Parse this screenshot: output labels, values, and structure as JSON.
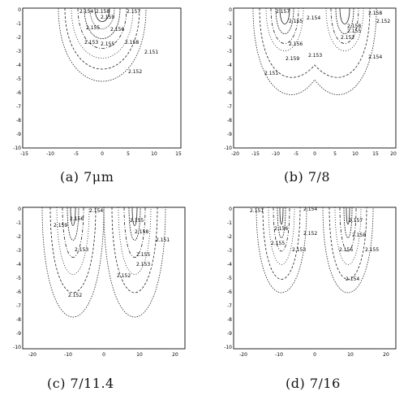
{
  "panels": [
    {
      "caption": "(a) 7μm",
      "xticks": [
        "-15",
        "-10",
        "-5",
        "0",
        "5",
        "10",
        "15"
      ],
      "yticks": [
        "0",
        "-1",
        "-2",
        "-3",
        "-4",
        "-5",
        "-6",
        "-7",
        "-8",
        "-9",
        "-10"
      ],
      "labels": [
        "2.154",
        "2.158",
        "2.157",
        "2.159",
        "2.155",
        "2.156",
        "2.153",
        "2.155",
        "2.158",
        "2.151",
        "2.152"
      ]
    },
    {
      "caption": "(b) 7/8",
      "xticks": [
        "-20",
        "-15",
        "-10",
        "-5",
        "0",
        "5",
        "10",
        "15",
        "20"
      ],
      "yticks": [
        "0",
        "-1",
        "-2",
        "-3",
        "-4",
        "-5",
        "-6",
        "-7",
        "-8",
        "-9",
        "-10"
      ],
      "labels": [
        "2.157",
        "2.154",
        "2.155",
        "2.152",
        "2.158",
        "2.155",
        "2.156",
        "2.153",
        "2.159",
        "2.154",
        "2.151",
        "2.158",
        "2.152"
      ]
    },
    {
      "caption": "(c) 7/11.4",
      "xticks": [
        "-20",
        "-10",
        "0",
        "10",
        "20"
      ],
      "yticks": [
        "0",
        "-1",
        "-2",
        "-3",
        "-4",
        "-5",
        "-6",
        "-7",
        "-8",
        "-9",
        "-10"
      ],
      "labels": [
        "2.154",
        "2.156",
        "2.155",
        "2.159",
        "2.158",
        "2.151",
        "2.153",
        "2.155",
        "2.153",
        "2.152",
        "2.152"
      ]
    },
    {
      "caption": "(d) 7/16",
      "xticks": [
        "-20",
        "-10",
        "0",
        "10",
        "20"
      ],
      "yticks": [
        "0",
        "-1",
        "-2",
        "-3",
        "-4",
        "-5",
        "-6",
        "-7",
        "-8",
        "-9",
        "-10"
      ],
      "labels": [
        "2.151",
        "2.154",
        "2.157",
        "2.156",
        "2.152",
        "2.158",
        "2.155",
        "2.156",
        "2.153",
        "2.155",
        "2.154"
      ]
    }
  ]
}
